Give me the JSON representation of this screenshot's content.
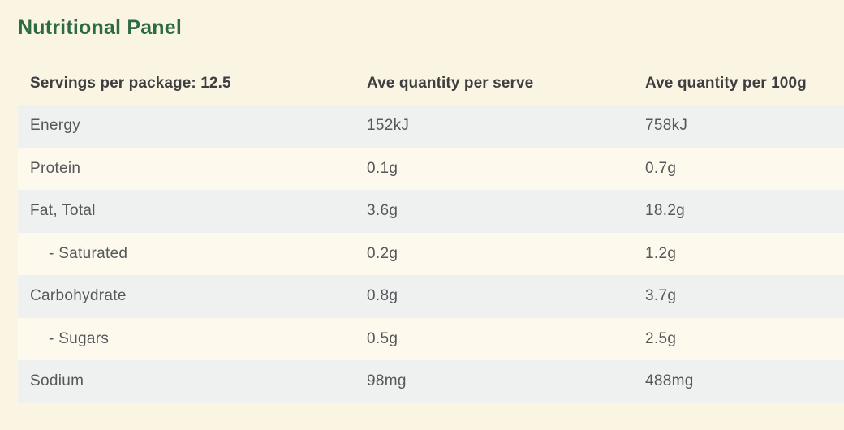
{
  "page": {
    "title": "Nutritional Panel"
  },
  "colors": {
    "page_background": "#faf4e3",
    "row_stripe_gray": "#eff0f0",
    "row_stripe_cream": "#fdf9ed",
    "title_green": "#2e6b45",
    "header_text": "#3e3e40",
    "body_text": "#56575b"
  },
  "table": {
    "headers": [
      {
        "label": "Servings per package: 12.5"
      },
      {
        "label": "Ave quantity per serve"
      },
      {
        "label": "Ave quantity per 100g"
      }
    ],
    "rows": [
      {
        "label": "Energy",
        "per_serve": "152kJ",
        "per_100g": "758kJ",
        "indent": false
      },
      {
        "label": "Protein",
        "per_serve": "0.1g",
        "per_100g": "0.7g",
        "indent": false
      },
      {
        "label": "Fat, Total",
        "per_serve": "3.6g",
        "per_100g": "18.2g",
        "indent": false
      },
      {
        "label": "- Saturated",
        "per_serve": "0.2g",
        "per_100g": "1.2g",
        "indent": true
      },
      {
        "label": "Carbohydrate",
        "per_serve": "0.8g",
        "per_100g": "3.7g",
        "indent": false
      },
      {
        "label": "- Sugars",
        "per_serve": "0.5g",
        "per_100g": "2.5g",
        "indent": true
      },
      {
        "label": "Sodium",
        "per_serve": "98mg",
        "per_100g": "488mg",
        "indent": false
      }
    ]
  }
}
